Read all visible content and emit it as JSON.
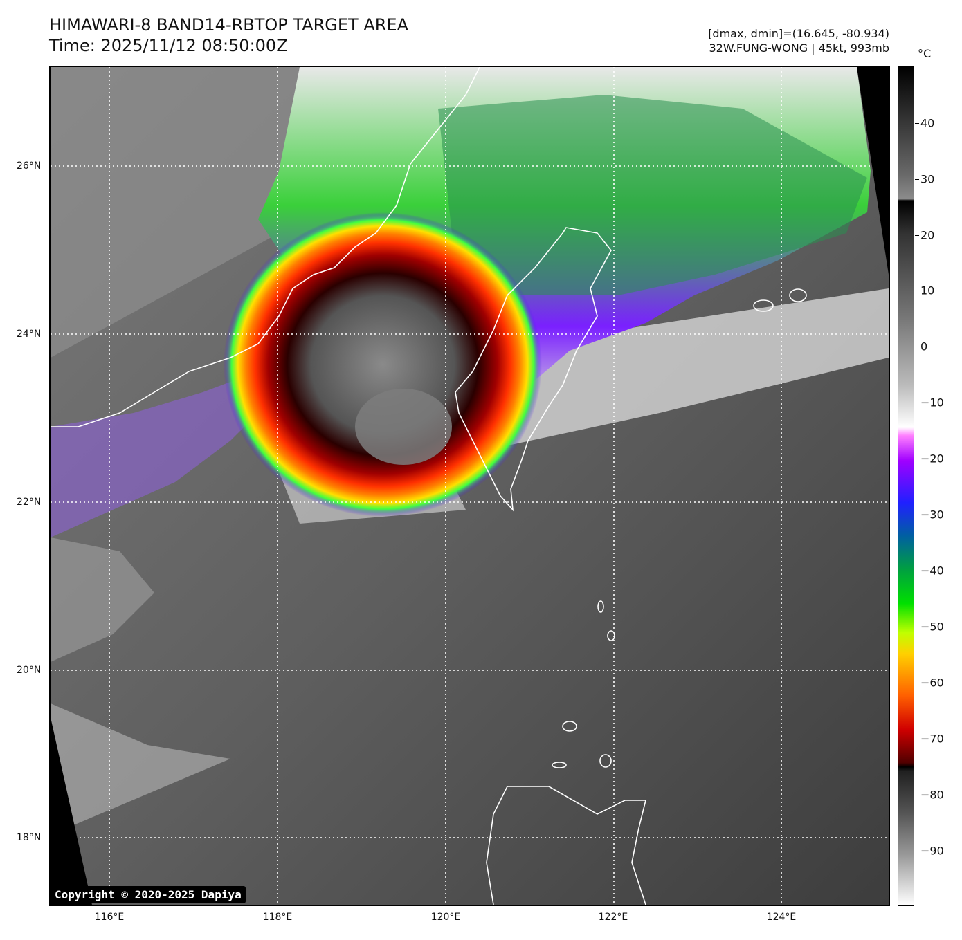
{
  "header": {
    "title_line1": "HIMAWARI-8 BAND14-RBTOP TARGET AREA",
    "title_line2": "Time: 2025/11/12 08:50:00Z",
    "meta_line1": "[dmax, dmin]=(16.645, -80.934)",
    "meta_line2": "32W.FUNG-WONG | 45kt, 993mb"
  },
  "map": {
    "lat_labels": [
      "26°N",
      "24°N",
      "22°N",
      "20°N",
      "18°N"
    ],
    "lon_labels": [
      "116°E",
      "118°E",
      "120°E",
      "122°E",
      "124°E"
    ],
    "copyright": "Copyright © 2020-2025 Dapiya"
  },
  "colorbar": {
    "unit": "°C",
    "ticks": [
      "40",
      "30",
      "20",
      "10",
      "0",
      "−10",
      "−20",
      "−30",
      "−40",
      "−50",
      "−60",
      "−70",
      "−80",
      "−90"
    ]
  }
}
